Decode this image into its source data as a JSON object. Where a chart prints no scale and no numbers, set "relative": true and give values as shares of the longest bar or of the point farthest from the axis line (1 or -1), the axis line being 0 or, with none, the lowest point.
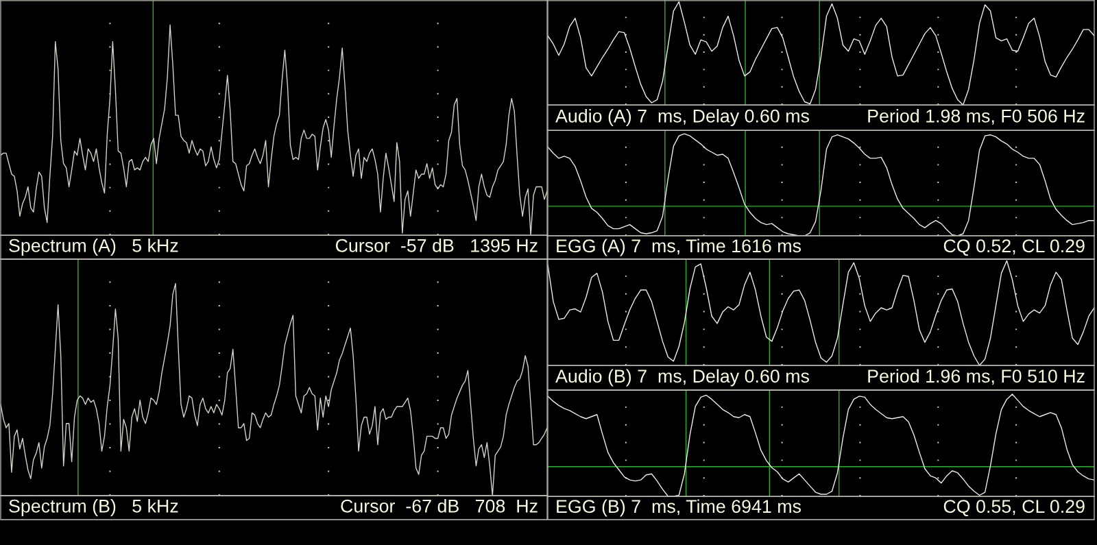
{
  "chart_data": [
    {
      "type": "line",
      "title": "Spectrum (A)   5 kHz",
      "annotations": [
        "Cursor  -57 dB   1395 Hz"
      ],
      "relative": true,
      "grid": "x",
      "categories": [
        null,
        null,
        null,
        null,
        null,
        null,
        null,
        null,
        null,
        null,
        null,
        null,
        null,
        null,
        null,
        null,
        null,
        null,
        null,
        null,
        null,
        null,
        null,
        null,
        null,
        null,
        null,
        null,
        null,
        null,
        null,
        null,
        null,
        null,
        null,
        null,
        null,
        null,
        null,
        null,
        null,
        null,
        null,
        null,
        null,
        null,
        null,
        null,
        null,
        null,
        null,
        null,
        null,
        null,
        null,
        null,
        null,
        null,
        null,
        null,
        null,
        null,
        null,
        null,
        null,
        null,
        null,
        null,
        null,
        null,
        null,
        null,
        null,
        null,
        null,
        null,
        null,
        null,
        null,
        null,
        null,
        null,
        null,
        null,
        null,
        null,
        null,
        null,
        null,
        null,
        null,
        null,
        null,
        null,
        null,
        null,
        null,
        null,
        null,
        null,
        null,
        null,
        null,
        null,
        null,
        null,
        null,
        null,
        null,
        null,
        null,
        null,
        null,
        null,
        null,
        null,
        null,
        null,
        null,
        null,
        null,
        null,
        null,
        null,
        null,
        null,
        null,
        null,
        null,
        null,
        null,
        null,
        null,
        null,
        null,
        null,
        null,
        null,
        null,
        null,
        null,
        null,
        null,
        null,
        null,
        null,
        null,
        null,
        null,
        null,
        null,
        null,
        null,
        null,
        null,
        null,
        null,
        null,
        null,
        null,
        null,
        null,
        null,
        null,
        null,
        null,
        null,
        null,
        null,
        null,
        null,
        null,
        null,
        null,
        null,
        null,
        null,
        null,
        null,
        null,
        null,
        null,
        null,
        null,
        null,
        null,
        null,
        null,
        null,
        null,
        null,
        null,
        null,
        null,
        null,
        null,
        null,
        null,
        null,
        null,
        null
      ],
      "series": [
        {
          "color": "#d4d4c8",
          "values": [
            0.38,
            0.39,
            0.39,
            0.34,
            0.29,
            0.28,
            0.21,
            0.09,
            0.15,
            0.18,
            0.23,
            0.13,
            0.11,
            0.22,
            0.3,
            0.28,
            0.13,
            0.06,
            0.28,
            0.47,
            0.92,
            0.79,
            0.45,
            0.34,
            0.32,
            0.23,
            0.31,
            0.4,
            0.38,
            0.46,
            0.38,
            0.31,
            0.41,
            0.39,
            0.35,
            0.41,
            0.32,
            0.25,
            0.2,
            0.48,
            0.65,
            0.92,
            0.69,
            0.4,
            0.39,
            0.32,
            0.23,
            0.35,
            0.36,
            0.31,
            0.32,
            0.31,
            0.35,
            0.37,
            0.35,
            0.43,
            0.46,
            0.34,
            0.46,
            0.53,
            0.6,
            0.75,
            1.0,
            0.81,
            0.57,
            0.57,
            0.47,
            0.45,
            0.44,
            0.39,
            0.45,
            0.41,
            0.38,
            0.41,
            0.4,
            0.33,
            0.35,
            0.42,
            0.36,
            0.32,
            0.36,
            0.49,
            0.62,
            0.76,
            0.59,
            0.35,
            0.34,
            0.29,
            0.24,
            0.21,
            0.33,
            0.34,
            0.38,
            0.41,
            0.37,
            0.34,
            0.38,
            0.45,
            0.23,
            0.36,
            0.47,
            0.53,
            0.57,
            0.74,
            0.88,
            0.71,
            0.43,
            0.36,
            0.37,
            0.36,
            0.46,
            0.5,
            0.46,
            0.46,
            0.48,
            0.47,
            0.31,
            0.42,
            0.51,
            0.55,
            0.5,
            0.37,
            0.52,
            0.65,
            0.75,
            0.89,
            0.71,
            0.5,
            0.38,
            0.28,
            0.38,
            0.41,
            0.27,
            0.37,
            0.35,
            0.39,
            0.41,
            0.36,
            0.29,
            0.11,
            0.27,
            0.39,
            0.32,
            0.24,
            0.16,
            0.44,
            0.35,
            0.01,
            0.17,
            0.21,
            0.09,
            0.2,
            0.31,
            0.27,
            0.29,
            0.29,
            0.34,
            0.27,
            0.32,
            0.24,
            0.22,
            0.24,
            0.23,
            0.29,
            0.45,
            0.49,
            0.62,
            0.65,
            0.43,
            0.33,
            0.31,
            0.26,
            0.2,
            0.14,
            0.07,
            0.23,
            0.29,
            0.23,
            0.19,
            0.18,
            0.23,
            0.26,
            0.31,
            0.33,
            0.35,
            0.43,
            0.57,
            0.65,
            0.59,
            0.38,
            0.19,
            0.09,
            0.18,
            0.22,
            0.0,
            0.19,
            0.23,
            0.23,
            0.23,
            0.17,
            0.21
          ]
        }
      ]
    },
    {
      "type": "line",
      "title": "Audio (A) 7  ms, Delay 0.60 ms",
      "annotations": [
        "Period 1.98 ms, F0 506 Hz"
      ],
      "relative": true,
      "grid": "x",
      "categories": [
        null,
        null,
        null,
        null,
        null,
        null,
        null,
        null,
        null,
        null,
        null,
        null,
        null,
        null,
        null,
        null,
        null,
        null,
        null,
        null,
        null,
        null,
        null,
        null,
        null,
        null,
        null,
        null,
        null,
        null,
        null,
        null,
        null,
        null,
        null,
        null,
        null,
        null,
        null,
        null,
        null,
        null,
        null,
        null,
        null,
        null,
        null,
        null,
        null,
        null,
        null,
        null,
        null,
        null,
        null,
        null,
        null,
        null,
        null,
        null,
        null,
        null,
        null,
        null,
        null,
        null,
        null,
        null,
        null,
        null,
        null,
        null,
        null,
        null,
        null,
        null,
        null,
        null,
        null,
        null,
        null,
        null,
        null,
        null,
        null,
        null,
        null,
        null,
        null,
        null,
        null,
        null,
        null,
        null,
        null,
        null,
        null,
        null,
        null,
        null,
        null
      ],
      "series": [
        {
          "color": "#ececec",
          "values": [
            0.67,
            0.59,
            0.48,
            0.59,
            0.76,
            0.84,
            0.65,
            0.36,
            0.28,
            0.37,
            0.46,
            0.54,
            0.63,
            0.71,
            0.7,
            0.55,
            0.37,
            0.2,
            0.08,
            0.02,
            0.05,
            0.23,
            0.57,
            0.91,
            1.0,
            0.8,
            0.58,
            0.49,
            0.63,
            0.61,
            0.52,
            0.57,
            0.75,
            0.86,
            0.67,
            0.43,
            0.28,
            0.32,
            0.44,
            0.54,
            0.64,
            0.74,
            0.75,
            0.65,
            0.46,
            0.27,
            0.13,
            0.03,
            0.01,
            0.15,
            0.47,
            0.86,
            0.98,
            0.84,
            0.58,
            0.52,
            0.64,
            0.62,
            0.49,
            0.62,
            0.77,
            0.84,
            0.76,
            0.46,
            0.28,
            0.29,
            0.39,
            0.49,
            0.59,
            0.69,
            0.75,
            0.67,
            0.5,
            0.32,
            0.16,
            0.05,
            0.0,
            0.15,
            0.44,
            0.79,
            0.97,
            0.91,
            0.65,
            0.62,
            0.64,
            0.53,
            0.52,
            0.65,
            0.79,
            0.84,
            0.66,
            0.42,
            0.29,
            0.27,
            0.37,
            0.46,
            0.54,
            0.63,
            0.73,
            0.73,
            0.67
          ]
        }
      ]
    },
    {
      "type": "line",
      "title": "EGG (A) 7  ms, Time 1616 ms",
      "annotations": [
        "CQ 0.52, CL 0.29"
      ],
      "relative": true,
      "grid": "x",
      "categories": [
        null,
        null,
        null,
        null,
        null,
        null,
        null,
        null,
        null,
        null,
        null,
        null,
        null,
        null,
        null,
        null,
        null,
        null,
        null,
        null,
        null,
        null,
        null,
        null,
        null,
        null,
        null,
        null,
        null,
        null,
        null,
        null,
        null,
        null,
        null,
        null,
        null,
        null,
        null,
        null,
        null,
        null,
        null,
        null,
        null,
        null,
        null,
        null,
        null,
        null,
        null,
        null,
        null,
        null,
        null,
        null,
        null,
        null,
        null,
        null,
        null,
        null,
        null,
        null,
        null,
        null,
        null,
        null,
        null,
        null,
        null,
        null,
        null,
        null,
        null,
        null,
        null,
        null,
        null,
        null,
        null,
        null,
        null,
        null,
        null,
        null,
        null,
        null,
        null,
        null,
        null,
        null,
        null,
        null,
        null,
        null,
        null,
        null,
        null,
        null,
        null
      ],
      "series": [
        {
          "color": "#ececec",
          "values": [
            0.87,
            0.81,
            0.76,
            0.78,
            0.76,
            0.68,
            0.54,
            0.38,
            0.27,
            0.23,
            0.17,
            0.1,
            0.07,
            0.07,
            0.09,
            0.11,
            0.07,
            0.03,
            0.02,
            0.03,
            0.05,
            0.19,
            0.56,
            0.88,
            0.98,
            1.0,
            0.98,
            0.94,
            0.9,
            0.85,
            0.82,
            0.79,
            0.8,
            0.76,
            0.62,
            0.47,
            0.31,
            0.23,
            0.17,
            0.13,
            0.11,
            0.12,
            0.08,
            0.04,
            0.02,
            0.01,
            0.0,
            0.0,
            0.03,
            0.14,
            0.45,
            0.85,
            0.97,
            0.99,
            0.97,
            0.95,
            0.91,
            0.86,
            0.8,
            0.76,
            0.76,
            0.77,
            0.67,
            0.5,
            0.36,
            0.27,
            0.22,
            0.17,
            0.11,
            0.08,
            0.12,
            0.15,
            0.12,
            0.06,
            0.01,
            0.0,
            0.02,
            0.15,
            0.48,
            0.84,
            0.98,
            0.99,
            0.97,
            0.93,
            0.9,
            0.85,
            0.82,
            0.78,
            0.76,
            0.76,
            0.7,
            0.54,
            0.36,
            0.26,
            0.2,
            0.15,
            0.11,
            0.12,
            0.13,
            0.15,
            0.15
          ]
        }
      ],
      "ref_lines": [
        {
          "axis": "y",
          "value": 0.29,
          "color": "#30b030"
        }
      ]
    },
    {
      "type": "line",
      "title": "Spectrum (B)   5 kHz",
      "annotations": [
        "Cursor  -67 dB   708  Hz"
      ],
      "relative": true,
      "grid": "x",
      "categories": [
        null,
        null,
        null,
        null,
        null,
        null,
        null,
        null,
        null,
        null,
        null,
        null,
        null,
        null,
        null,
        null,
        null,
        null,
        null,
        null,
        null,
        null,
        null,
        null,
        null,
        null,
        null,
        null,
        null,
        null,
        null,
        null,
        null,
        null,
        null,
        null,
        null,
        null,
        null,
        null,
        null,
        null,
        null,
        null,
        null,
        null,
        null,
        null,
        null,
        null,
        null,
        null,
        null,
        null,
        null,
        null,
        null,
        null,
        null,
        null,
        null,
        null,
        null,
        null,
        null,
        null,
        null,
        null,
        null,
        null,
        null,
        null,
        null,
        null,
        null,
        null,
        null,
        null,
        null,
        null,
        null,
        null,
        null,
        null,
        null,
        null,
        null,
        null,
        null,
        null,
        null,
        null,
        null,
        null,
        null,
        null,
        null,
        null,
        null,
        null,
        null,
        null,
        null,
        null,
        null,
        null,
        null,
        null,
        null,
        null,
        null,
        null,
        null,
        null,
        null,
        null,
        null,
        null,
        null,
        null,
        null,
        null,
        null,
        null,
        null,
        null,
        null,
        null,
        null,
        null,
        null,
        null,
        null,
        null,
        null,
        null,
        null,
        null,
        null,
        null,
        null,
        null,
        null,
        null,
        null,
        null,
        null,
        null,
        null,
        null,
        null,
        null,
        null,
        null,
        null,
        null,
        null,
        null,
        null,
        null,
        null,
        null,
        null,
        null,
        null,
        null,
        null,
        null,
        null,
        null,
        null,
        null,
        null,
        null,
        null,
        null,
        null,
        null,
        null,
        null,
        null,
        null,
        null,
        null,
        null,
        null,
        null,
        null,
        null,
        null,
        null,
        null,
        null,
        null,
        null,
        null,
        null,
        null,
        null,
        null,
        null
      ],
      "series": [
        {
          "color": "#d4d4c8",
          "values": [
            0.43,
            0.36,
            0.32,
            0.34,
            0.11,
            0.28,
            0.31,
            0.22,
            0.27,
            0.19,
            0.12,
            0.08,
            0.17,
            0.2,
            0.25,
            0.13,
            0.23,
            0.27,
            0.33,
            0.48,
            0.69,
            0.9,
            0.66,
            0.14,
            0.34,
            0.34,
            0.16,
            0.37,
            0.45,
            0.47,
            0.46,
            0.43,
            0.46,
            0.44,
            0.45,
            0.41,
            0.34,
            0.21,
            0.28,
            0.42,
            0.52,
            0.69,
            0.88,
            0.74,
            0.21,
            0.36,
            0.32,
            0.21,
            0.37,
            0.41,
            0.35,
            0.45,
            0.37,
            0.34,
            0.39,
            0.46,
            0.45,
            0.43,
            0.49,
            0.58,
            0.65,
            0.72,
            0.8,
            0.95,
            1.0,
            0.7,
            0.43,
            0.37,
            0.41,
            0.47,
            0.46,
            0.38,
            0.33,
            0.43,
            0.46,
            0.41,
            0.39,
            0.42,
            0.39,
            0.43,
            0.41,
            0.38,
            0.45,
            0.58,
            0.6,
            0.69,
            0.51,
            0.32,
            0.32,
            0.34,
            0.26,
            0.27,
            0.39,
            0.38,
            0.34,
            0.32,
            0.36,
            0.39,
            0.37,
            0.38,
            0.43,
            0.47,
            0.52,
            0.61,
            0.71,
            0.76,
            0.81,
            0.85,
            0.47,
            0.43,
            0.39,
            0.47,
            0.48,
            0.51,
            0.48,
            0.47,
            0.31,
            0.46,
            0.37,
            0.47,
            0.42,
            0.5,
            0.54,
            0.58,
            0.64,
            0.67,
            0.71,
            0.75,
            0.79,
            0.66,
            0.46,
            0.21,
            0.33,
            0.37,
            0.37,
            0.29,
            0.33,
            0.42,
            0.24,
            0.39,
            0.41,
            0.36,
            0.37,
            0.37,
            0.4,
            0.42,
            0.42,
            0.42,
            0.44,
            0.46,
            0.4,
            0.28,
            0.13,
            0.1,
            0.19,
            0.21,
            0.28,
            0.28,
            0.28,
            0.27,
            0.27,
            0.32,
            0.32,
            0.27,
            0.29,
            0.38,
            0.42,
            0.46,
            0.49,
            0.52,
            0.54,
            0.59,
            0.43,
            0.27,
            0.14,
            0.22,
            0.24,
            0.18,
            0.25,
            0.14,
            0.0,
            0.19,
            0.21,
            0.23,
            0.28,
            0.38,
            0.43,
            0.47,
            0.51,
            0.54,
            0.55,
            0.59,
            0.66,
            0.61,
            0.43,
            0.24,
            0.24,
            0.25,
            0.27,
            0.29,
            0.32
          ]
        }
      ]
    },
    {
      "type": "line",
      "title": "Audio (B) 7  ms, Delay 0.60 ms",
      "annotations": [
        "Period 1.96 ms, F0 510 Hz"
      ],
      "relative": true,
      "grid": "x",
      "categories": [
        null,
        null,
        null,
        null,
        null,
        null,
        null,
        null,
        null,
        null,
        null,
        null,
        null,
        null,
        null,
        null,
        null,
        null,
        null,
        null,
        null,
        null,
        null,
        null,
        null,
        null,
        null,
        null,
        null,
        null,
        null,
        null,
        null,
        null,
        null,
        null,
        null,
        null,
        null,
        null,
        null,
        null,
        null,
        null,
        null,
        null,
        null,
        null,
        null,
        null,
        null,
        null,
        null,
        null,
        null,
        null,
        null,
        null,
        null,
        null,
        null,
        null,
        null,
        null,
        null,
        null,
        null,
        null,
        null,
        null,
        null,
        null,
        null,
        null,
        null,
        null,
        null,
        null,
        null,
        null,
        null,
        null,
        null,
        null,
        null,
        null,
        null,
        null,
        null,
        null,
        null,
        null,
        null,
        null,
        null,
        null,
        null,
        null,
        null,
        null,
        null
      ],
      "series": [
        {
          "color": "#ececec",
          "values": [
            0.96,
            0.61,
            0.44,
            0.45,
            0.53,
            0.54,
            0.51,
            0.65,
            0.84,
            0.88,
            0.7,
            0.42,
            0.24,
            0.24,
            0.39,
            0.53,
            0.64,
            0.72,
            0.72,
            0.61,
            0.42,
            0.23,
            0.08,
            0.04,
            0.18,
            0.41,
            0.73,
            0.94,
            0.97,
            0.74,
            0.47,
            0.4,
            0.51,
            0.56,
            0.53,
            0.58,
            0.77,
            0.89,
            0.72,
            0.47,
            0.27,
            0.23,
            0.36,
            0.52,
            0.64,
            0.71,
            0.72,
            0.62,
            0.43,
            0.22,
            0.07,
            0.03,
            0.09,
            0.26,
            0.58,
            0.89,
            0.98,
            0.83,
            0.57,
            0.42,
            0.5,
            0.55,
            0.53,
            0.55,
            0.72,
            0.86,
            0.85,
            0.62,
            0.34,
            0.22,
            0.32,
            0.48,
            0.62,
            0.72,
            0.73,
            0.61,
            0.4,
            0.22,
            0.09,
            0.0,
            0.06,
            0.26,
            0.57,
            0.88,
            1.0,
            0.82,
            0.57,
            0.42,
            0.49,
            0.53,
            0.5,
            0.57,
            0.77,
            0.89,
            0.82,
            0.53,
            0.26,
            0.2,
            0.32,
            0.47,
            0.55
          ]
        }
      ]
    },
    {
      "type": "line",
      "title": "EGG (B) 7  ms, Time 6941 ms",
      "annotations": [
        "CQ 0.55, CL 0.29"
      ],
      "relative": true,
      "grid": "x",
      "categories": [
        null,
        null,
        null,
        null,
        null,
        null,
        null,
        null,
        null,
        null,
        null,
        null,
        null,
        null,
        null,
        null,
        null,
        null,
        null,
        null,
        null,
        null,
        null,
        null,
        null,
        null,
        null,
        null,
        null,
        null,
        null,
        null,
        null,
        null,
        null,
        null,
        null,
        null,
        null,
        null,
        null,
        null,
        null,
        null,
        null,
        null,
        null,
        null,
        null,
        null,
        null,
        null,
        null,
        null,
        null,
        null,
        null,
        null,
        null,
        null,
        null,
        null,
        null,
        null,
        null,
        null,
        null,
        null,
        null,
        null,
        null,
        null,
        null,
        null,
        null,
        null,
        null,
        null,
        null,
        null,
        null,
        null,
        null,
        null,
        null,
        null,
        null,
        null,
        null,
        null,
        null,
        null,
        null,
        null,
        null,
        null,
        null,
        null,
        null,
        null,
        null
      ],
      "series": [
        {
          "color": "#ececec",
          "values": [
            0.98,
            0.93,
            0.89,
            0.86,
            0.84,
            0.81,
            0.78,
            0.76,
            0.78,
            0.8,
            0.61,
            0.43,
            0.33,
            0.26,
            0.19,
            0.16,
            0.15,
            0.16,
            0.21,
            0.22,
            0.15,
            0.07,
            0.0,
            0.0,
            0.01,
            0.22,
            0.6,
            0.88,
            0.97,
            0.99,
            0.95,
            0.9,
            0.85,
            0.82,
            0.78,
            0.77,
            0.8,
            0.78,
            0.62,
            0.45,
            0.35,
            0.28,
            0.24,
            0.17,
            0.14,
            0.18,
            0.22,
            0.16,
            0.1,
            0.04,
            0.02,
            0.02,
            0.05,
            0.23,
            0.57,
            0.85,
            0.95,
            0.98,
            0.97,
            0.9,
            0.85,
            0.81,
            0.77,
            0.76,
            0.77,
            0.78,
            0.73,
            0.6,
            0.43,
            0.27,
            0.2,
            0.18,
            0.13,
            0.2,
            0.25,
            0.23,
            0.17,
            0.1,
            0.05,
            0.01,
            0.04,
            0.3,
            0.61,
            0.85,
            0.95,
            1.0,
            0.94,
            0.88,
            0.84,
            0.81,
            0.78,
            0.8,
            0.82,
            0.8,
            0.67,
            0.46,
            0.31,
            0.24,
            0.2,
            0.17,
            0.16
          ]
        }
      ],
      "ref_lines": [
        {
          "axis": "y",
          "value": 0.29,
          "color": "#30b030"
        }
      ]
    }
  ]
}
